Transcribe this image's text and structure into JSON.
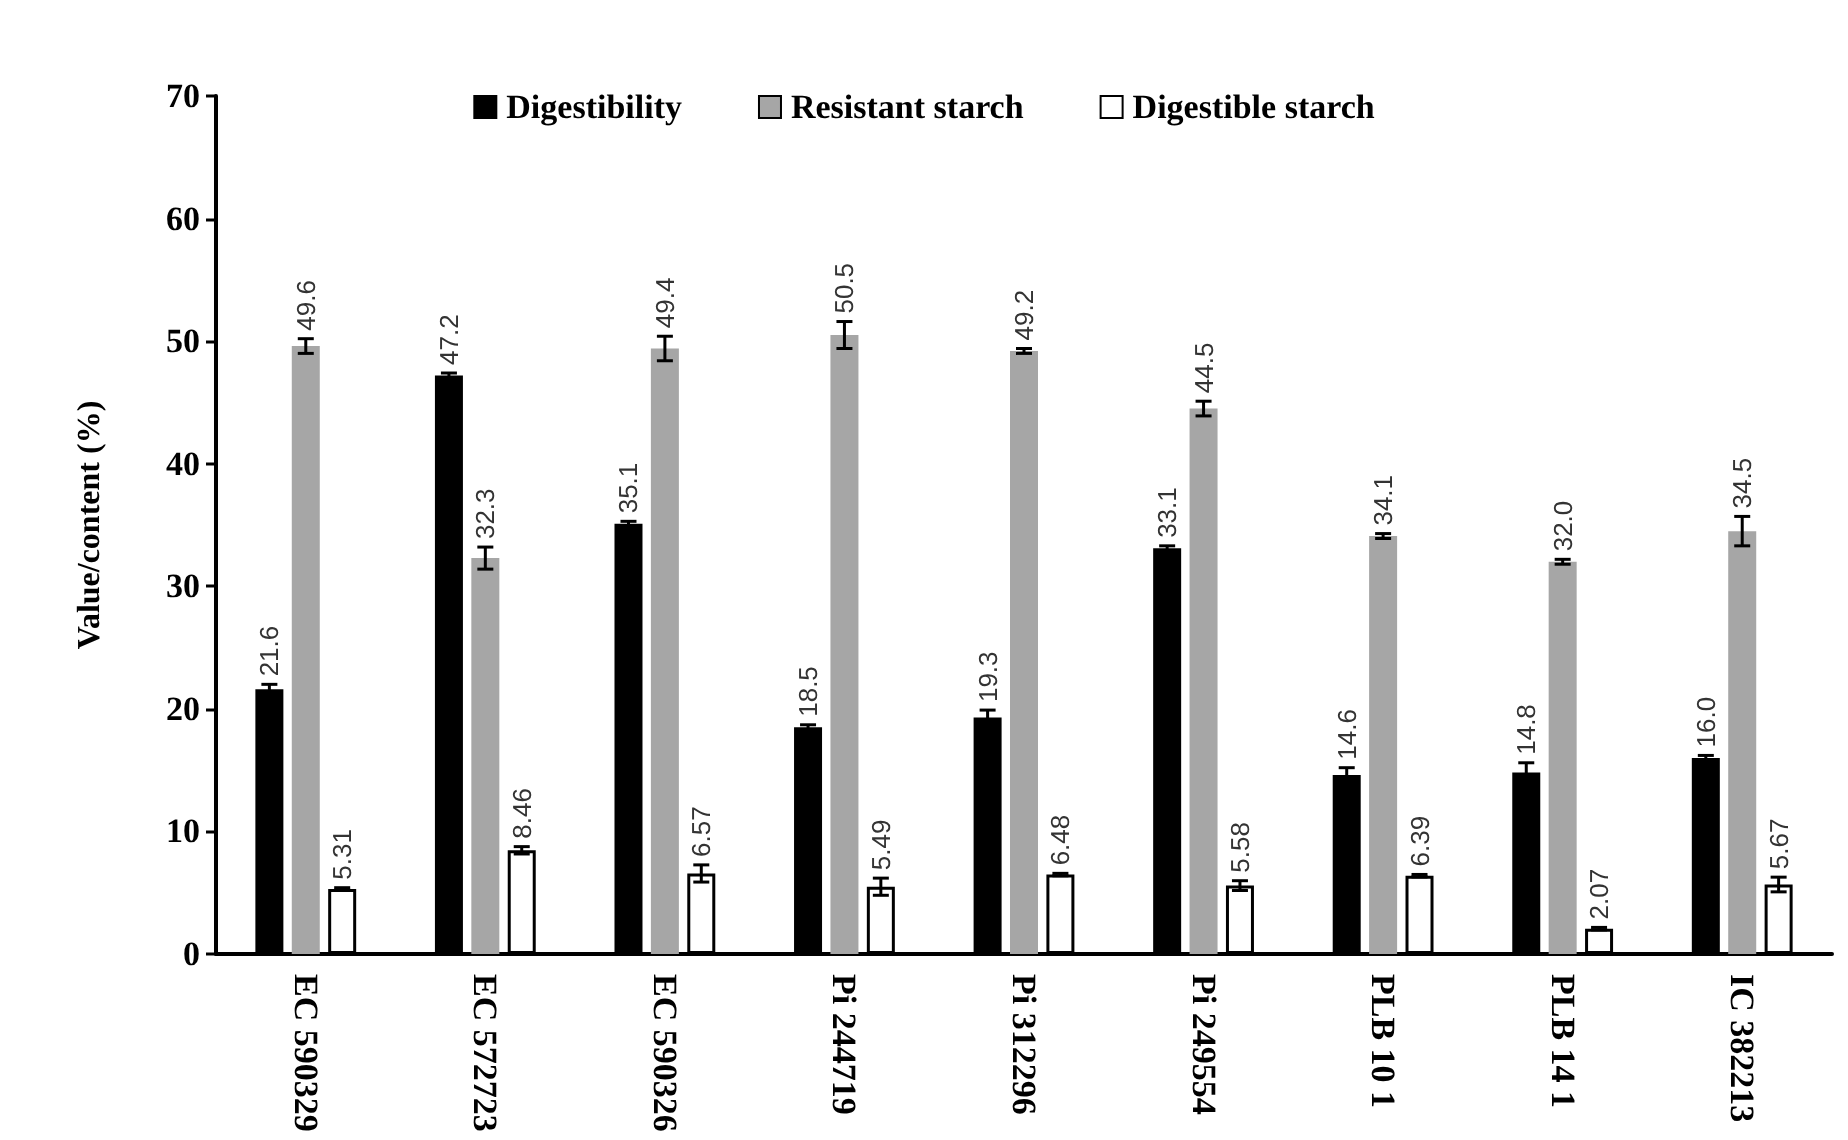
{
  "chart_data": {
    "type": "bar",
    "ylabel": "Value/content (%)",
    "categories": [
      "EC 590329",
      "EC 572723",
      "EC 590326",
      "Pi 244719",
      "Pi 312296",
      "Pi 249554",
      "PLB 10 1",
      "PLB 14 1",
      "IC 382213"
    ],
    "series": [
      {
        "name": "Digestibility",
        "color": "#000000",
        "values": [
          21.6,
          47.2,
          35.1,
          18.5,
          19.3,
          33.1,
          14.6,
          14.8,
          16.0
        ],
        "errors": [
          0.4,
          0.2,
          0.2,
          0.2,
          0.6,
          0.2,
          0.6,
          0.8,
          0.2
        ],
        "value_labels": [
          "21.6",
          "47.2",
          "35.1",
          "18.5",
          "19.3",
          "33.1",
          "14.6",
          "14.8",
          "16.0"
        ]
      },
      {
        "name": "Resistant starch",
        "color": "#a6a6a6",
        "values": [
          49.6,
          32.3,
          49.4,
          50.5,
          49.2,
          44.5,
          34.1,
          32.0,
          34.5
        ],
        "errors": [
          0.6,
          0.9,
          1.0,
          1.1,
          0.2,
          0.6,
          0.2,
          0.2,
          1.2
        ],
        "value_labels": [
          "49.6",
          "32.3",
          "49.4",
          "50.5",
          "49.2",
          "44.5",
          "34.1",
          "32.0",
          "34.5"
        ]
      },
      {
        "name": "Digestible starch",
        "color": "#ffffff",
        "values": [
          5.31,
          8.46,
          6.57,
          5.49,
          6.48,
          5.58,
          6.39,
          2.07,
          5.67
        ],
        "errors": [
          0.1,
          0.3,
          0.7,
          0.7,
          0.1,
          0.4,
          0.1,
          0.1,
          0.6
        ],
        "value_labels": [
          "5.31",
          "8.46",
          "6.57",
          "5.49",
          "6.48",
          "5.58",
          "6.39",
          "2.07",
          "5.67"
        ]
      }
    ],
    "ylim": [
      0,
      70
    ],
    "yticks": [
      0,
      10,
      20,
      30,
      40,
      50,
      60,
      70
    ],
    "grid": false,
    "legend": "top"
  }
}
